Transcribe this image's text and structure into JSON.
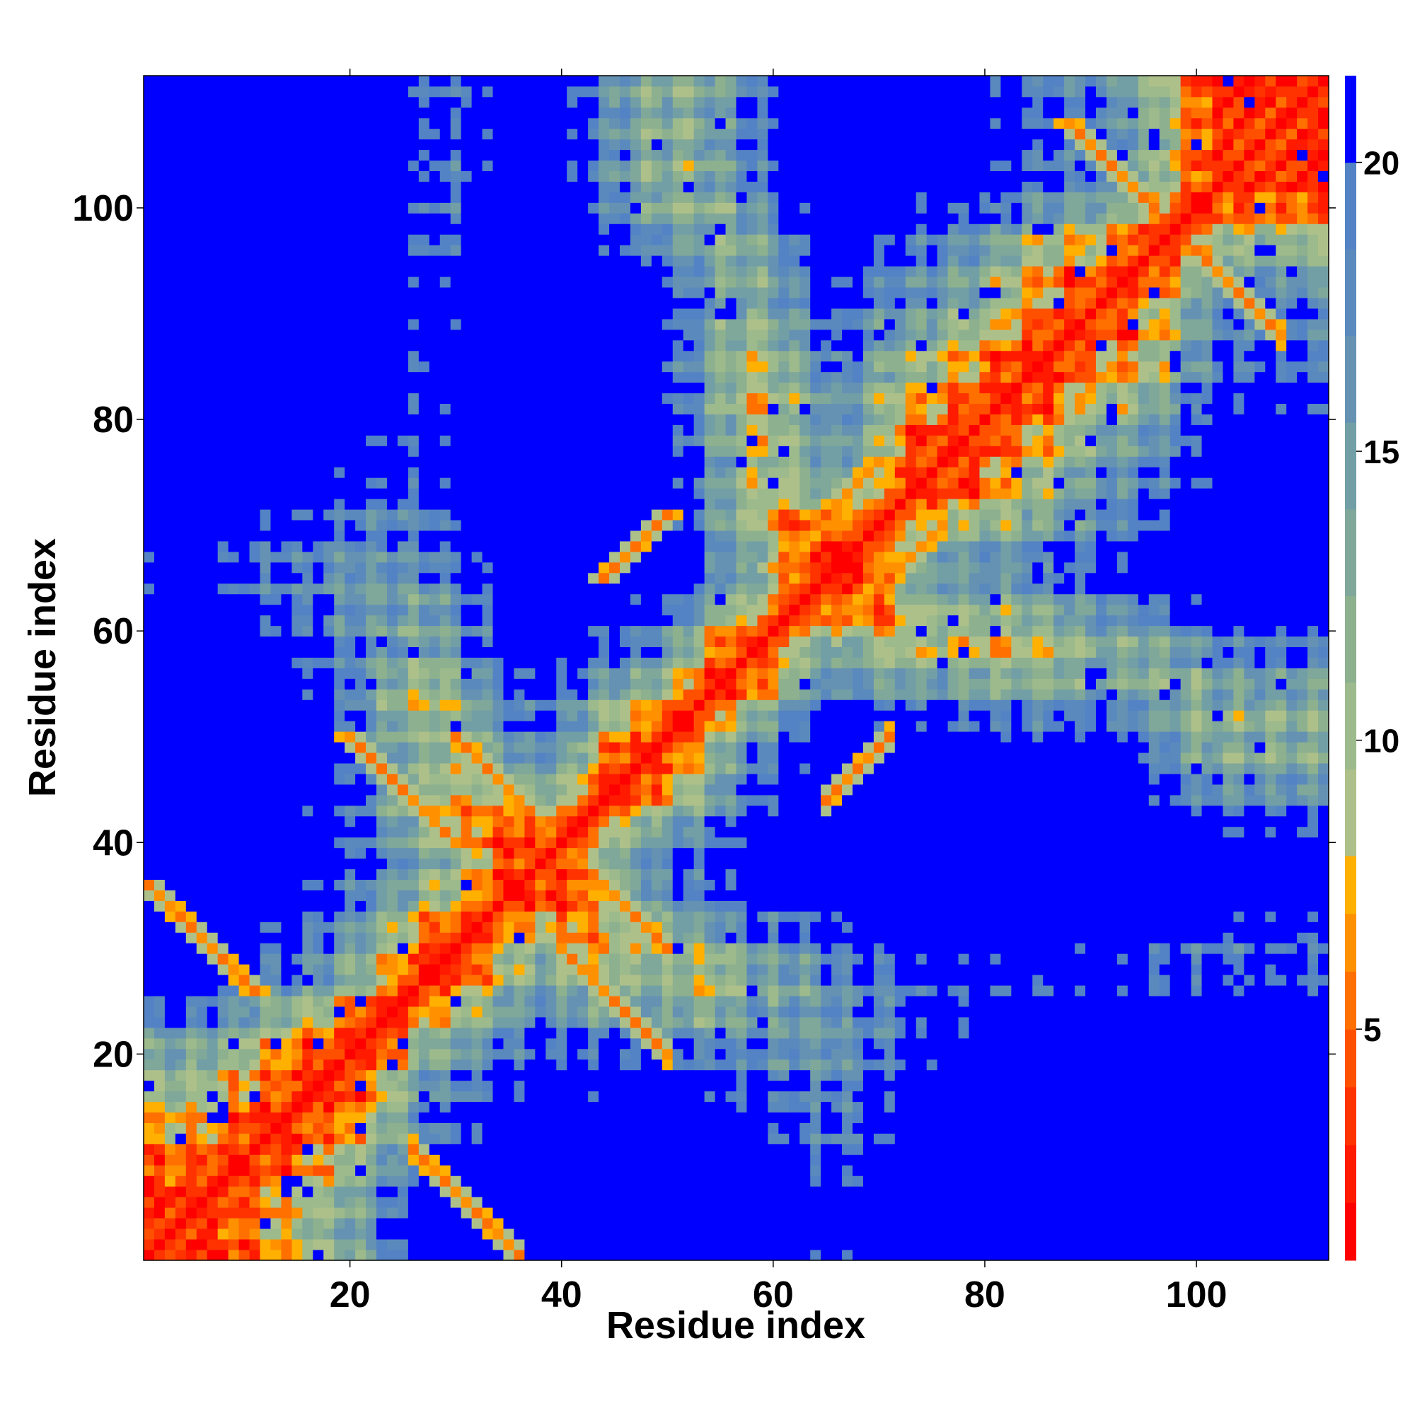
{
  "chart_data": {
    "type": "heatmap",
    "title": "",
    "xlabel": "Residue index",
    "ylabel": "Residue index",
    "n_residues": 112,
    "xlim": [
      1,
      112
    ],
    "ylim": [
      1,
      112
    ],
    "x_ticks": [
      20,
      40,
      60,
      80,
      100
    ],
    "y_ticks": [
      20,
      40,
      60,
      80,
      100
    ],
    "colorbar": {
      "ticks": [
        5,
        10,
        15,
        20
      ],
      "range": [
        1,
        21.5
      ],
      "levels": [
        {
          "upper": 2,
          "color": "#ff0000"
        },
        {
          "upper": 3,
          "color": "#ff1a00"
        },
        {
          "upper": 4,
          "color": "#ff3300"
        },
        {
          "upper": 5,
          "color": "#ff5000"
        },
        {
          "upper": 6,
          "color": "#ff7000"
        },
        {
          "upper": 7,
          "color": "#ff9000"
        },
        {
          "upper": 8,
          "color": "#ffb000"
        },
        {
          "upper": 9.5,
          "color": "#aec08a"
        },
        {
          "upper": 11,
          "color": "#9cba8c"
        },
        {
          "upper": 12.5,
          "color": "#8db08f"
        },
        {
          "upper": 14,
          "color": "#7fa79a"
        },
        {
          "upper": 15.5,
          "color": "#729fa6"
        },
        {
          "upper": 17,
          "color": "#6592b3"
        },
        {
          "upper": 18.5,
          "color": "#5a89bd"
        },
        {
          "upper": 20,
          "color": "#5383c4"
        },
        {
          "upper": 21.5,
          "color": "#0000ff"
        }
      ]
    },
    "secondary_structure_anchors": [
      5,
      20,
      28,
      38,
      48,
      58,
      66,
      75,
      92,
      103
    ],
    "contact_features": [
      {
        "type": "diagonal",
        "note": "main diagonal, distance ≈ 0"
      },
      {
        "type": "antiparallel",
        "residues_a": [
          1,
          12
        ],
        "residues_b": [
          26,
          36
        ]
      },
      {
        "type": "antiparallel",
        "residues_a": [
          30,
          38
        ],
        "residues_b": [
          40,
          50
        ]
      },
      {
        "type": "antiparallel",
        "residues_a": [
          20,
          30
        ],
        "residues_b": [
          40,
          50
        ]
      },
      {
        "type": "parallel",
        "residues_a": [
          44,
          50
        ],
        "residues_b": [
          65,
          72
        ]
      },
      {
        "type": "parallel",
        "residues_a": [
          60,
          70
        ],
        "residues_b": [
          66,
          76
        ]
      },
      {
        "type": "antiparallel",
        "residues_a": [
          88,
          98
        ],
        "residues_b": [
          96,
          108
        ]
      }
    ]
  }
}
